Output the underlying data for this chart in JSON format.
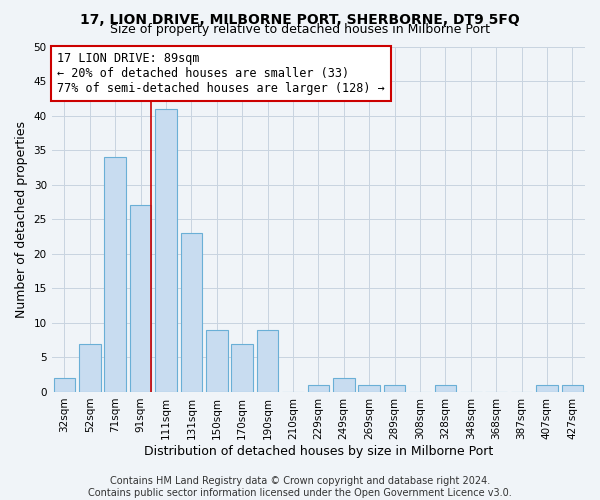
{
  "title": "17, LION DRIVE, MILBORNE PORT, SHERBORNE, DT9 5FQ",
  "subtitle": "Size of property relative to detached houses in Milborne Port",
  "xlabel": "Distribution of detached houses by size in Milborne Port",
  "ylabel": "Number of detached properties",
  "bar_color": "#c8dcf0",
  "bar_edge_color": "#6aafd6",
  "categories": [
    "32sqm",
    "52sqm",
    "71sqm",
    "91sqm",
    "111sqm",
    "131sqm",
    "150sqm",
    "170sqm",
    "190sqm",
    "210sqm",
    "229sqm",
    "249sqm",
    "269sqm",
    "289sqm",
    "308sqm",
    "328sqm",
    "348sqm",
    "368sqm",
    "387sqm",
    "407sqm",
    "427sqm"
  ],
  "values": [
    2,
    7,
    34,
    27,
    41,
    23,
    9,
    7,
    9,
    0,
    1,
    2,
    1,
    1,
    0,
    1,
    0,
    0,
    0,
    1,
    1
  ],
  "ylim": [
    0,
    50
  ],
  "yticks": [
    0,
    5,
    10,
    15,
    20,
    25,
    30,
    35,
    40,
    45,
    50
  ],
  "marker_label": "17 LION DRIVE: 89sqm",
  "annotation_line1": "← 20% of detached houses are smaller (33)",
  "annotation_line2": "77% of semi-detached houses are larger (128) →",
  "footer1": "Contains HM Land Registry data © Crown copyright and database right 2024.",
  "footer2": "Contains public sector information licensed under the Open Government Licence v3.0.",
  "bg_color": "#f0f4f8",
  "grid_color": "#c8d4e0",
  "marker_line_color": "#cc0000",
  "title_fontsize": 10,
  "subtitle_fontsize": 9,
  "axis_label_fontsize": 9,
  "tick_fontsize": 7.5,
  "footer_fontsize": 7,
  "annotation_fontsize": 8.5
}
